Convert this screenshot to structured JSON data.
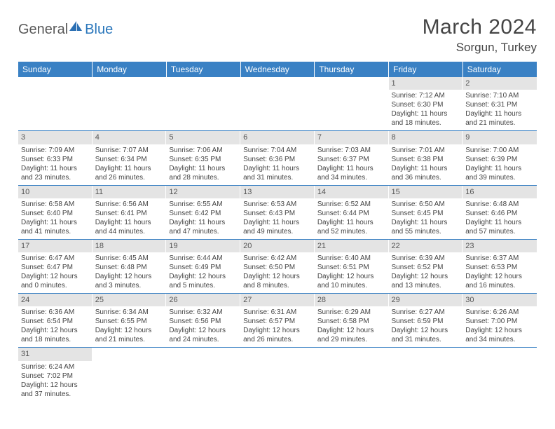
{
  "logo": {
    "text1": "General",
    "text2": "Blue"
  },
  "title": "March 2024",
  "location": "Sorgun, Turkey",
  "colors": {
    "header_bg": "#3a81c4",
    "header_text": "#ffffff",
    "daynum_bg": "#e4e4e4",
    "divider": "#3a81c4",
    "body_text": "#444444",
    "logo_gray": "#5a5a5a",
    "logo_blue": "#2976bb"
  },
  "typography": {
    "title_fontsize": 30,
    "location_fontsize": 17,
    "dow_fontsize": 12,
    "cell_fontsize": 10
  },
  "dow": [
    "Sunday",
    "Monday",
    "Tuesday",
    "Wednesday",
    "Thursday",
    "Friday",
    "Saturday"
  ],
  "weeks": [
    [
      null,
      null,
      null,
      null,
      null,
      {
        "n": "1",
        "sr": "Sunrise: 7:12 AM",
        "ss": "Sunset: 6:30 PM",
        "d1": "Daylight: 11 hours",
        "d2": "and 18 minutes."
      },
      {
        "n": "2",
        "sr": "Sunrise: 7:10 AM",
        "ss": "Sunset: 6:31 PM",
        "d1": "Daylight: 11 hours",
        "d2": "and 21 minutes."
      }
    ],
    [
      {
        "n": "3",
        "sr": "Sunrise: 7:09 AM",
        "ss": "Sunset: 6:33 PM",
        "d1": "Daylight: 11 hours",
        "d2": "and 23 minutes."
      },
      {
        "n": "4",
        "sr": "Sunrise: 7:07 AM",
        "ss": "Sunset: 6:34 PM",
        "d1": "Daylight: 11 hours",
        "d2": "and 26 minutes."
      },
      {
        "n": "5",
        "sr": "Sunrise: 7:06 AM",
        "ss": "Sunset: 6:35 PM",
        "d1": "Daylight: 11 hours",
        "d2": "and 28 minutes."
      },
      {
        "n": "6",
        "sr": "Sunrise: 7:04 AM",
        "ss": "Sunset: 6:36 PM",
        "d1": "Daylight: 11 hours",
        "d2": "and 31 minutes."
      },
      {
        "n": "7",
        "sr": "Sunrise: 7:03 AM",
        "ss": "Sunset: 6:37 PM",
        "d1": "Daylight: 11 hours",
        "d2": "and 34 minutes."
      },
      {
        "n": "8",
        "sr": "Sunrise: 7:01 AM",
        "ss": "Sunset: 6:38 PM",
        "d1": "Daylight: 11 hours",
        "d2": "and 36 minutes."
      },
      {
        "n": "9",
        "sr": "Sunrise: 7:00 AM",
        "ss": "Sunset: 6:39 PM",
        "d1": "Daylight: 11 hours",
        "d2": "and 39 minutes."
      }
    ],
    [
      {
        "n": "10",
        "sr": "Sunrise: 6:58 AM",
        "ss": "Sunset: 6:40 PM",
        "d1": "Daylight: 11 hours",
        "d2": "and 41 minutes."
      },
      {
        "n": "11",
        "sr": "Sunrise: 6:56 AM",
        "ss": "Sunset: 6:41 PM",
        "d1": "Daylight: 11 hours",
        "d2": "and 44 minutes."
      },
      {
        "n": "12",
        "sr": "Sunrise: 6:55 AM",
        "ss": "Sunset: 6:42 PM",
        "d1": "Daylight: 11 hours",
        "d2": "and 47 minutes."
      },
      {
        "n": "13",
        "sr": "Sunrise: 6:53 AM",
        "ss": "Sunset: 6:43 PM",
        "d1": "Daylight: 11 hours",
        "d2": "and 49 minutes."
      },
      {
        "n": "14",
        "sr": "Sunrise: 6:52 AM",
        "ss": "Sunset: 6:44 PM",
        "d1": "Daylight: 11 hours",
        "d2": "and 52 minutes."
      },
      {
        "n": "15",
        "sr": "Sunrise: 6:50 AM",
        "ss": "Sunset: 6:45 PM",
        "d1": "Daylight: 11 hours",
        "d2": "and 55 minutes."
      },
      {
        "n": "16",
        "sr": "Sunrise: 6:48 AM",
        "ss": "Sunset: 6:46 PM",
        "d1": "Daylight: 11 hours",
        "d2": "and 57 minutes."
      }
    ],
    [
      {
        "n": "17",
        "sr": "Sunrise: 6:47 AM",
        "ss": "Sunset: 6:47 PM",
        "d1": "Daylight: 12 hours",
        "d2": "and 0 minutes."
      },
      {
        "n": "18",
        "sr": "Sunrise: 6:45 AM",
        "ss": "Sunset: 6:48 PM",
        "d1": "Daylight: 12 hours",
        "d2": "and 3 minutes."
      },
      {
        "n": "19",
        "sr": "Sunrise: 6:44 AM",
        "ss": "Sunset: 6:49 PM",
        "d1": "Daylight: 12 hours",
        "d2": "and 5 minutes."
      },
      {
        "n": "20",
        "sr": "Sunrise: 6:42 AM",
        "ss": "Sunset: 6:50 PM",
        "d1": "Daylight: 12 hours",
        "d2": "and 8 minutes."
      },
      {
        "n": "21",
        "sr": "Sunrise: 6:40 AM",
        "ss": "Sunset: 6:51 PM",
        "d1": "Daylight: 12 hours",
        "d2": "and 10 minutes."
      },
      {
        "n": "22",
        "sr": "Sunrise: 6:39 AM",
        "ss": "Sunset: 6:52 PM",
        "d1": "Daylight: 12 hours",
        "d2": "and 13 minutes."
      },
      {
        "n": "23",
        "sr": "Sunrise: 6:37 AM",
        "ss": "Sunset: 6:53 PM",
        "d1": "Daylight: 12 hours",
        "d2": "and 16 minutes."
      }
    ],
    [
      {
        "n": "24",
        "sr": "Sunrise: 6:36 AM",
        "ss": "Sunset: 6:54 PM",
        "d1": "Daylight: 12 hours",
        "d2": "and 18 minutes."
      },
      {
        "n": "25",
        "sr": "Sunrise: 6:34 AM",
        "ss": "Sunset: 6:55 PM",
        "d1": "Daylight: 12 hours",
        "d2": "and 21 minutes."
      },
      {
        "n": "26",
        "sr": "Sunrise: 6:32 AM",
        "ss": "Sunset: 6:56 PM",
        "d1": "Daylight: 12 hours",
        "d2": "and 24 minutes."
      },
      {
        "n": "27",
        "sr": "Sunrise: 6:31 AM",
        "ss": "Sunset: 6:57 PM",
        "d1": "Daylight: 12 hours",
        "d2": "and 26 minutes."
      },
      {
        "n": "28",
        "sr": "Sunrise: 6:29 AM",
        "ss": "Sunset: 6:58 PM",
        "d1": "Daylight: 12 hours",
        "d2": "and 29 minutes."
      },
      {
        "n": "29",
        "sr": "Sunrise: 6:27 AM",
        "ss": "Sunset: 6:59 PM",
        "d1": "Daylight: 12 hours",
        "d2": "and 31 minutes."
      },
      {
        "n": "30",
        "sr": "Sunrise: 6:26 AM",
        "ss": "Sunset: 7:00 PM",
        "d1": "Daylight: 12 hours",
        "d2": "and 34 minutes."
      }
    ],
    [
      {
        "n": "31",
        "sr": "Sunrise: 6:24 AM",
        "ss": "Sunset: 7:02 PM",
        "d1": "Daylight: 12 hours",
        "d2": "and 37 minutes."
      },
      null,
      null,
      null,
      null,
      null,
      null
    ]
  ]
}
